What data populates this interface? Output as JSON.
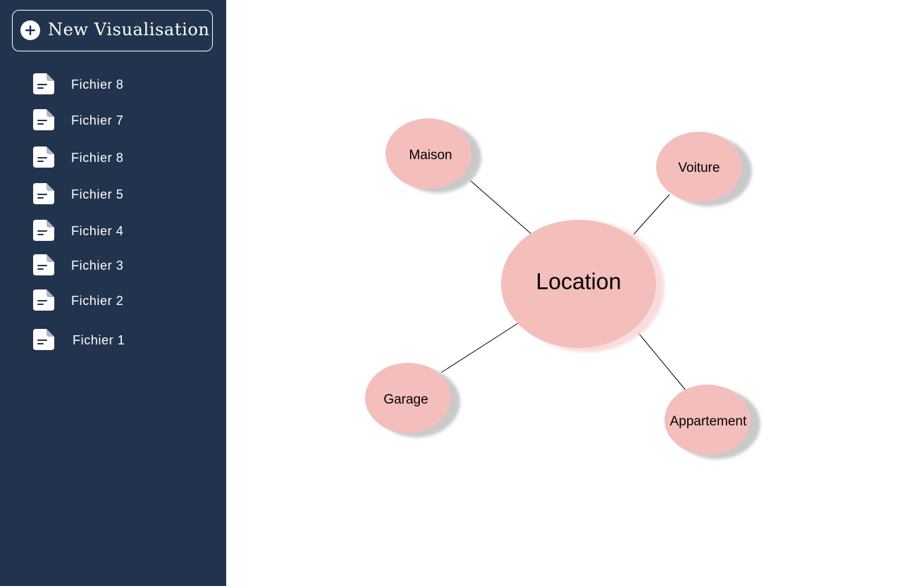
{
  "sidebar": {
    "new_button": {
      "label": "New Visualisation",
      "icon": "plus-circle-icon"
    },
    "files": [
      {
        "label": "Fichier 8",
        "icon": "document-icon"
      },
      {
        "label": "Fichier 7",
        "icon": "document-icon"
      },
      {
        "label": "Fichier 8",
        "icon": "document-icon"
      },
      {
        "label": "Fichier 5",
        "icon": "document-icon"
      },
      {
        "label": "Fichier 4",
        "icon": "document-icon"
      },
      {
        "label": "Fichier 3",
        "icon": "document-icon"
      },
      {
        "label": "Fichier 2",
        "icon": "document-icon"
      },
      {
        "label": "Fichier 1",
        "icon": "document-icon"
      }
    ]
  },
  "mindmap": {
    "center": "Location",
    "children": [
      "Maison",
      "Voiture",
      "Garage",
      "Appartement"
    ]
  },
  "colors": {
    "sidebar_bg": "#22344d",
    "node_fill": "#f4bebd",
    "node_shadow": "#c9c9c9",
    "text": "#ffffff"
  }
}
